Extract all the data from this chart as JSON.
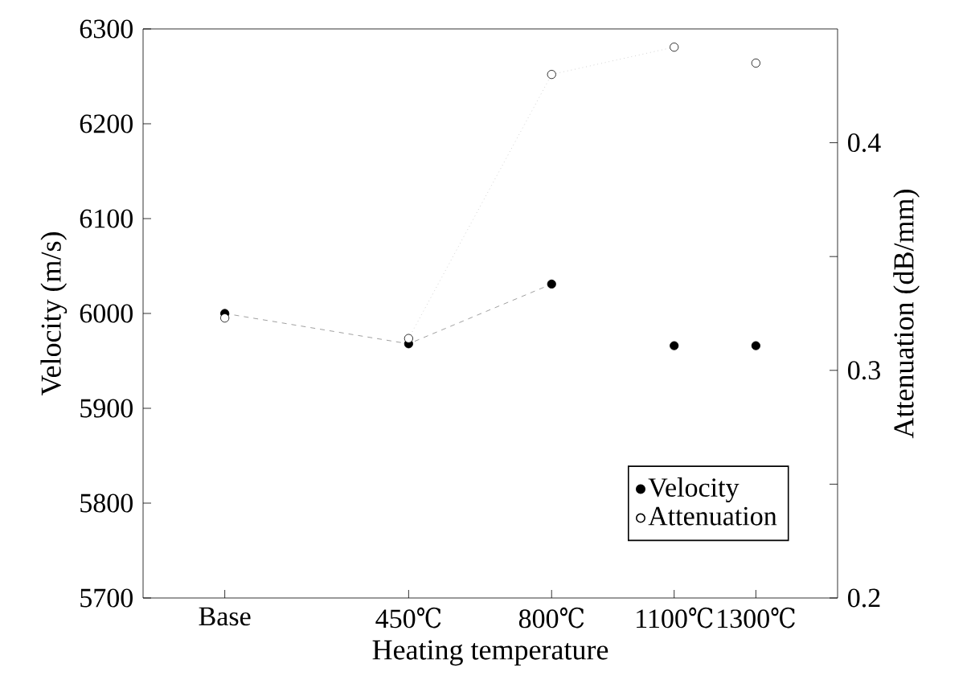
{
  "chart_data": {
    "type": "scatter",
    "xlabel": "Heating temperature",
    "ylabel": "Velocity  (m/s)",
    "y2label": "Attenuation  (dB/mm)",
    "x": [
      0,
      450,
      800,
      1100,
      1300
    ],
    "xlim": [
      -200,
      1500
    ],
    "xticks": [
      {
        "value": 0,
        "label": "Base"
      },
      {
        "value": 450,
        "label": "450℃"
      },
      {
        "value": 800,
        "label": "800℃"
      },
      {
        "value": 1100,
        "label": "1100℃"
      },
      {
        "value": 1300,
        "label": "1300℃"
      }
    ],
    "ylim": [
      5700,
      6300
    ],
    "yticks": [
      5700,
      5800,
      5900,
      6000,
      6100,
      6200,
      6300
    ],
    "y2lim": [
      0.2,
      0.45
    ],
    "y2ticks": [
      0.2,
      {
        "value": 0.25,
        "label": null
      },
      0.3,
      {
        "value": 0.35,
        "label": null
      },
      0.4
    ],
    "marker": "circle",
    "legend": "bottom right",
    "grid": false,
    "series": [
      {
        "name": "Velocity",
        "color": "#000000",
        "values": [
          6000,
          5968,
          6031,
          5966,
          5966
        ]
      },
      {
        "name": "Attenuation",
        "color": "#000000",
        "axis": "y2",
        "values": [
          0.323,
          0.314,
          0.43,
          0.442,
          0.435
        ]
      },
      {
        "type": "line",
        "color": "#888888",
        "line_style": "dashed",
        "marker": "none",
        "x": [
          0,
          450,
          800
        ],
        "values": [
          6000,
          5968,
          6031
        ]
      },
      {
        "type": "line",
        "color": "#bbbbbb",
        "line_style": "dotted",
        "marker": "none",
        "axis": "y2",
        "x": [
          450,
          800,
          1100
        ],
        "values": [
          0.314,
          0.43,
          0.442
        ]
      }
    ]
  }
}
